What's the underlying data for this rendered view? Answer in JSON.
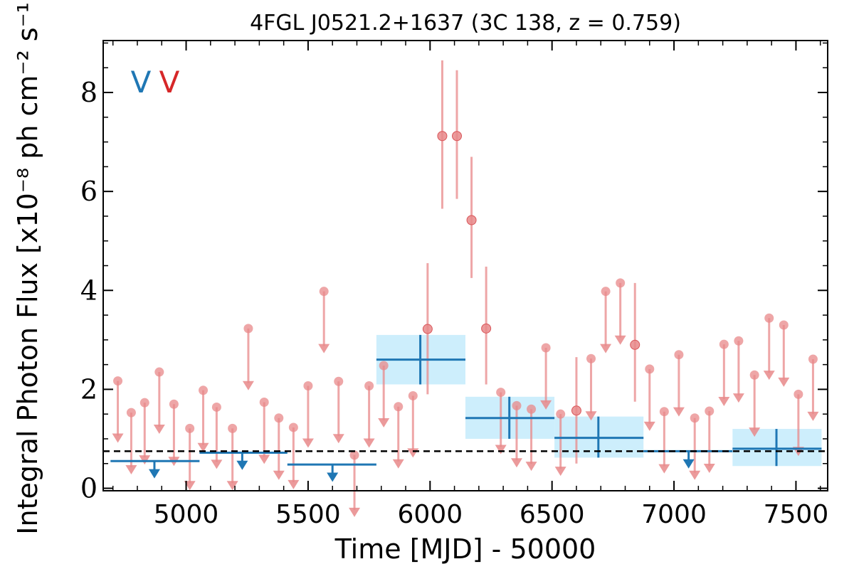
{
  "chart_data": {
    "type": "scatter",
    "title": "4FGL J0521.2+1637 (3C 138, z = 0.759)",
    "xlabel": "Time [MJD] - 50000",
    "ylabel": "Integral Photon Flux [x10⁻⁸ ph cm⁻² s⁻¹]",
    "xlim": [
      4660,
      7630
    ],
    "ylim": [
      -0.05,
      9.05
    ],
    "xticks": [
      5000,
      5500,
      6000,
      6500,
      7000,
      7500
    ],
    "xtick_labels": [
      "5000",
      "5500",
      "6000",
      "6500",
      "7000",
      "7500"
    ],
    "yticks": [
      0,
      2,
      4,
      6,
      8
    ],
    "ytick_labels": [
      "0",
      "2",
      "4",
      "6",
      "8"
    ],
    "legend_markers": [
      {
        "text": "V",
        "color": "#1f77b4"
      },
      {
        "text": "V",
        "color": "#d62728"
      }
    ],
    "reference_line": 0.75,
    "colors": {
      "long_bin": "#1f77b4",
      "long_bin_box": "#cdeefc",
      "short_bin": "#e8888a",
      "reference_line": "#000000"
    },
    "series": [
      {
        "points": [
          {
            "x": 5960,
            "x_lo": 5780,
            "x_hi": 6145,
            "y": 2.6,
            "y_lo": 2.1,
            "y_hi": 3.1
          },
          {
            "x": 6325,
            "x_lo": 6145,
            "x_hi": 6510,
            "y": 1.42,
            "y_lo": 1.0,
            "y_hi": 1.85
          },
          {
            "x": 6690,
            "x_lo": 6510,
            "x_hi": 6875,
            "y": 1.02,
            "y_lo": 0.62,
            "y_hi": 1.45
          },
          {
            "x": 7420,
            "x_lo": 7240,
            "x_hi": 7605,
            "y": 0.8,
            "y_lo": 0.45,
            "y_hi": 1.2
          }
        ],
        "upper_limits": [
          {
            "x": 4870,
            "x_lo": 4690,
            "x_hi": 5055,
            "y": 0.55
          },
          {
            "x": 5230,
            "x_lo": 5055,
            "x_hi": 5415,
            "y": 0.72
          },
          {
            "x": 5600,
            "x_lo": 5415,
            "x_hi": 5780,
            "y": 0.48
          },
          {
            "x": 7060,
            "x_lo": 6875,
            "x_hi": 7240,
            "y": 0.75
          }
        ]
      },
      {
        "points": [
          {
            "x": 5990,
            "y": 3.22,
            "y_lo": 1.9,
            "y_hi": 4.55
          },
          {
            "x": 6050,
            "y": 7.12,
            "y_lo": 5.65,
            "y_hi": 8.65
          },
          {
            "x": 6110,
            "y": 7.12,
            "y_lo": 5.85,
            "y_hi": 8.45
          },
          {
            "x": 6170,
            "y": 5.42,
            "y_lo": 4.25,
            "y_hi": 6.7
          },
          {
            "x": 6230,
            "y": 3.23,
            "y_lo": 2.1,
            "y_hi": 4.48
          },
          {
            "x": 6600,
            "y": 1.57,
            "y_lo": 0.5,
            "y_hi": 2.65
          },
          {
            "x": 6840,
            "y": 2.9,
            "y_lo": 1.75,
            "y_hi": 4.15
          }
        ],
        "upper_limits": [
          {
            "x": 4720,
            "y": 2.17
          },
          {
            "x": 4775,
            "y": 1.53
          },
          {
            "x": 4830,
            "y": 1.73
          },
          {
            "x": 4890,
            "y": 2.35
          },
          {
            "x": 4950,
            "y": 1.7
          },
          {
            "x": 5015,
            "y": 1.21
          },
          {
            "x": 5070,
            "y": 1.98
          },
          {
            "x": 5125,
            "y": 1.64
          },
          {
            "x": 5190,
            "y": 1.21
          },
          {
            "x": 5255,
            "y": 3.23
          },
          {
            "x": 5320,
            "y": 1.74
          },
          {
            "x": 5380,
            "y": 1.42
          },
          {
            "x": 5440,
            "y": 1.23
          },
          {
            "x": 5500,
            "y": 2.07
          },
          {
            "x": 5565,
            "y": 3.98
          },
          {
            "x": 5625,
            "y": 2.16
          },
          {
            "x": 5690,
            "y": 0.67
          },
          {
            "x": 5750,
            "y": 2.07
          },
          {
            "x": 5810,
            "y": 2.48
          },
          {
            "x": 5870,
            "y": 1.65
          },
          {
            "x": 5930,
            "y": 1.87
          },
          {
            "x": 6290,
            "y": 1.94
          },
          {
            "x": 6355,
            "y": 1.67
          },
          {
            "x": 6415,
            "y": 1.6
          },
          {
            "x": 6475,
            "y": 2.84
          },
          {
            "x": 6535,
            "y": 1.5
          },
          {
            "x": 6660,
            "y": 2.62
          },
          {
            "x": 6720,
            "y": 3.98
          },
          {
            "x": 6780,
            "y": 4.15
          },
          {
            "x": 6900,
            "y": 2.41
          },
          {
            "x": 6960,
            "y": 1.55
          },
          {
            "x": 7020,
            "y": 2.7
          },
          {
            "x": 7085,
            "y": 1.42
          },
          {
            "x": 7145,
            "y": 1.56
          },
          {
            "x": 7205,
            "y": 2.91
          },
          {
            "x": 7265,
            "y": 2.98
          },
          {
            "x": 7330,
            "y": 2.29
          },
          {
            "x": 7390,
            "y": 3.44
          },
          {
            "x": 7450,
            "y": 3.3
          },
          {
            "x": 7510,
            "y": 1.9
          },
          {
            "x": 7570,
            "y": 2.61
          }
        ]
      }
    ]
  }
}
